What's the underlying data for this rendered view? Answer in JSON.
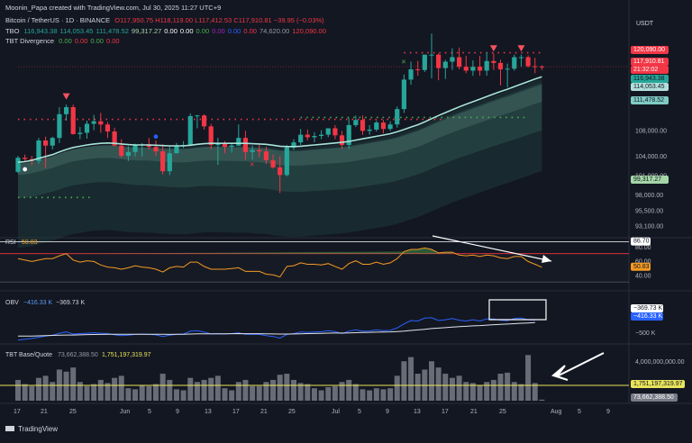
{
  "header": {
    "caption": "Moonin_Papa created with TradingView.com, Jul 30, 2025 11:27 UTC+9",
    "currency": "USDT",
    "symbol": "Bitcoin / TetherUS · 1D · BINANCE",
    "ohlc": "O117,950.75 H118,119.00 L117,412.53 C117,910.81 −39.95 (−0.03%)",
    "tbo_label": "TBO",
    "tbo_values": [
      "116,943.38",
      "114,053.45",
      "111,478.52",
      "99,317.27",
      "0.00",
      "0.00",
      "0.00",
      "0.00",
      "0.00",
      "0.00",
      "74,620.00",
      "120,090.00"
    ],
    "tbo_colors": [
      "#26a69a",
      "#26a69a",
      "#26a69a",
      "#a5d6a7",
      "#ffffff",
      "#ffffff",
      "#4caf50",
      "#9c27b0",
      "#2962ff",
      "#f23645",
      "#9598a1",
      "#f23645"
    ],
    "div_label": "TBT Divergence",
    "div_values": [
      "0.00",
      "0.00",
      "0.00",
      "0.00"
    ],
    "div_colors": [
      "#4caf50",
      "#f23645",
      "#4caf50",
      "#f23645"
    ]
  },
  "price_axis": {
    "ticks": [
      "108,000.00",
      "104,000.00",
      "101,000.00",
      "98,000.00",
      "95,500.00",
      "93,100.00"
    ],
    "tags": [
      {
        "text": "120,090.00",
        "bg": "#f23645",
        "fg": "#ffffff"
      },
      {
        "text": "117,910.81",
        "bg": "#f23645",
        "fg": "#ffffff"
      },
      {
        "text": "21:32:02",
        "bg": "#f23645",
        "fg": "#ffffff"
      },
      {
        "text": "116,943.38",
        "bg": "#26a69a",
        "fg": "#131722"
      },
      {
        "text": "114,053.45",
        "bg": "#b2dfdb",
        "fg": "#131722"
      },
      {
        "text": "111,478.52",
        "bg": "#80cbc4",
        "fg": "#131722"
      },
      {
        "text": "99,317.27",
        "bg": "#a5d6a7",
        "fg": "#131722"
      }
    ]
  },
  "rsi": {
    "label": "RSI",
    "value": "50.83",
    "ticks": [
      "80.00",
      "60.00",
      "40.00"
    ],
    "tag_top": "86.70",
    "tag_value": "50.83"
  },
  "obv": {
    "label": "OBV",
    "v1": "−416.33 K",
    "v2": "−369.73 K",
    "tag1": "−369.73 K",
    "tag2": "−416.33 K",
    "tick": "−500 K"
  },
  "volume": {
    "label": "TBT Base/Quote",
    "v1": "73,662,388.50",
    "v2": "1,751,197,319.97",
    "tick": "4,000,000,000.00",
    "tag1": "1,751,197,319.97",
    "tag2": "73,662,388.50"
  },
  "time_axis": [
    "17",
    "21",
    "25",
    "Jun",
    "5",
    "9",
    "13",
    "17",
    "21",
    "25",
    "Jul",
    "5",
    "9",
    "13",
    "17",
    "21",
    "25",
    "Aug",
    "5",
    "9"
  ],
  "footer": {
    "brand": "TradingView"
  },
  "chart_data": [
    {
      "type": "candlestick",
      "title": "Bitcoin / TetherUS · 1D · BINANCE",
      "x": [
        "May 15",
        "May 16",
        "May 17",
        "May 18",
        "May 19",
        "May 20",
        "May 21",
        "May 22",
        "May 23",
        "May 24",
        "May 25",
        "May 26",
        "May 27",
        "May 28",
        "May 29",
        "May 30",
        "May 31",
        "Jun 1",
        "Jun 2",
        "Jun 3",
        "Jun 4",
        "Jun 5",
        "Jun 6",
        "Jun 7",
        "Jun 8",
        "Jun 9",
        "Jun 10",
        "Jun 11",
        "Jun 12",
        "Jun 13",
        "Jun 14",
        "Jun 15",
        "Jun 16",
        "Jun 17",
        "Jun 18",
        "Jun 19",
        "Jun 20",
        "Jun 21",
        "Jun 22",
        "Jun 23",
        "Jun 24",
        "Jun 25",
        "Jun 26",
        "Jun 27",
        "Jun 28",
        "Jun 29",
        "Jun 30",
        "Jul 1",
        "Jul 2",
        "Jul 3",
        "Jul 4",
        "Jul 5",
        "Jul 6",
        "Jul 7",
        "Jul 8",
        "Jul 9",
        "Jul 10",
        "Jul 11",
        "Jul 12",
        "Jul 13",
        "Jul 14",
        "Jul 15",
        "Jul 16",
        "Jul 17",
        "Jul 18",
        "Jul 19",
        "Jul 20",
        "Jul 21",
        "Jul 22",
        "Jul 23",
        "Jul 24",
        "Jul 25",
        "Jul 26",
        "Jul 27",
        "Jul 28",
        "Jul 29",
        "Jul 30"
      ],
      "open": [
        101500,
        103700,
        103500,
        103200,
        106400,
        105600,
        106800,
        110500,
        111600,
        107400,
        107600,
        109000,
        109400,
        108900,
        107800,
        105600,
        104000,
        104600,
        105700,
        105800,
        105400,
        104700,
        101600,
        104400,
        105600,
        105700,
        110200,
        110300,
        108600,
        105700,
        105900,
        105400,
        105600,
        106800,
        104600,
        104900,
        104700,
        103300,
        102200,
        101000,
        105300,
        106100,
        107300,
        106900,
        107100,
        107300,
        108300,
        107200,
        105700,
        108800,
        109600,
        107900,
        108100,
        109200,
        108200,
        108900,
        111300,
        115900,
        117500,
        117400,
        119800,
        119800,
        117700,
        118700,
        119400,
        117900,
        117300,
        117900,
        117300,
        118800,
        118500,
        117500,
        117600,
        119400,
        119400,
        118000,
        117950
      ],
      "high": [
        104000,
        104200,
        104000,
        106800,
        107000,
        107000,
        111600,
        112000,
        112000,
        108500,
        109500,
        110400,
        110700,
        109300,
        108400,
        106600,
        105500,
        105900,
        106000,
        106800,
        106400,
        105800,
        105500,
        106000,
        106300,
        110600,
        110400,
        110500,
        109000,
        106800,
        106300,
        106000,
        108900,
        107900,
        105600,
        105700,
        105400,
        104200,
        103900,
        105700,
        106600,
        108200,
        108100,
        107700,
        108000,
        108300,
        108800,
        107900,
        109900,
        110300,
        110300,
        108800,
        109500,
        109600,
        109400,
        111700,
        116700,
        118700,
        118800,
        119600,
        123100,
        120000,
        119000,
        120800,
        120900,
        119600,
        118900,
        119600,
        120200,
        120000,
        119000,
        118400,
        119800,
        119800,
        119700,
        119300,
        118119
      ],
      "low": [
        101300,
        103100,
        102600,
        102800,
        102100,
        105000,
        106000,
        109500,
        107300,
        106600,
        106700,
        108000,
        107600,
        106800,
        105500,
        103700,
        103200,
        103900,
        103900,
        105000,
        104000,
        101100,
        101000,
        104400,
        105200,
        105500,
        108300,
        108100,
        105000,
        102600,
        104400,
        104500,
        105500,
        103400,
        103400,
        103800,
        102700,
        102000,
        98200,
        100800,
        104900,
        105700,
        106400,
        106100,
        106600,
        106900,
        106600,
        105100,
        105100,
        108500,
        107300,
        107300,
        107800,
        107500,
        107900,
        108400,
        110700,
        115100,
        116500,
        117100,
        116100,
        115800,
        116000,
        117400,
        117500,
        116900,
        116500,
        116500,
        116500,
        117400,
        115000,
        114700,
        117300,
        117900,
        117800,
        116900,
        117412
      ],
      "close": [
        103700,
        103500,
        103200,
        106400,
        105600,
        106800,
        110500,
        111600,
        107400,
        107600,
        109000,
        109400,
        108900,
        107800,
        105600,
        104000,
        104600,
        105700,
        105800,
        105400,
        104700,
        101600,
        104400,
        105600,
        105700,
        110200,
        110300,
        108600,
        105700,
        105900,
        105400,
        105600,
        106800,
        104600,
        104900,
        104700,
        103300,
        102200,
        101000,
        105300,
        106100,
        107300,
        106900,
        107100,
        107300,
        108300,
        107200,
        105700,
        108800,
        109600,
        107900,
        108100,
        109200,
        108200,
        108900,
        111300,
        115900,
        117500,
        117400,
        119800,
        119800,
        117700,
        118700,
        119400,
        117900,
        117300,
        117900,
        117300,
        118800,
        118500,
        117500,
        117600,
        119400,
        119400,
        118000,
        117950,
        117910.81
      ],
      "moving_average": [
        103000,
        103100,
        103300,
        103600,
        103900,
        104200,
        104600,
        105000,
        105300,
        105500,
        105700,
        105850,
        105950,
        106000,
        105950,
        105850,
        105750,
        105700,
        105700,
        105700,
        105650,
        105600,
        105550,
        105550,
        105550,
        105650,
        105800,
        105900,
        105950,
        105950,
        105950,
        105950,
        105950,
        105950,
        105900,
        105850,
        105800,
        105650,
        105500,
        105450,
        105450,
        105500,
        105600,
        105700,
        105800,
        105900,
        106000,
        106100,
        106250,
        106450,
        106650,
        106850,
        107050,
        107250,
        107450,
        107750,
        108100,
        108500,
        108850,
        109300,
        109800,
        110300,
        110750,
        111200,
        111650,
        112050,
        112450,
        112850,
        113250,
        113650,
        114050,
        114400,
        114800,
        115200,
        115600,
        116000,
        116350
      ],
      "markers": [
        {
          "kind": "sell",
          "date": "May 22",
          "price": 113200
        },
        {
          "kind": "sell",
          "date": "Jul 23",
          "price": 120700
        },
        {
          "kind": "sell",
          "date": "Jul 27",
          "price": 120700
        },
        {
          "kind": "cross-green",
          "date": "Jul 10",
          "price": 118700
        },
        {
          "kind": "cross-red",
          "date": "Jun 18",
          "price": 102700
        },
        {
          "kind": "dot-blue",
          "date": "Jun 4",
          "price": 107000
        },
        {
          "kind": "dot-white",
          "date": "May 16",
          "price": 101900
        }
      ],
      "levels": [
        {
          "name": "red dotted",
          "value": 109700,
          "from": "May 15",
          "to": "Jul 16"
        },
        {
          "name": "green dotted",
          "value": 110000,
          "from": "Jun 25",
          "to": "Jul 28"
        },
        {
          "name": "green dotted",
          "value": 97500,
          "from": "May 15",
          "to": "May 26"
        },
        {
          "name": "red dotted",
          "value": 120100,
          "from": "Jul 10",
          "to": "Jul 30"
        }
      ]
    },
    {
      "type": "line",
      "title": "RSI",
      "values": [
        63,
        61,
        59,
        61,
        63,
        63,
        67,
        70,
        61,
        58,
        60,
        59,
        54,
        51,
        50,
        48,
        50,
        53,
        51,
        50,
        48,
        44,
        50,
        52,
        51,
        58,
        58,
        52,
        48,
        48,
        48,
        49,
        50,
        45,
        45,
        45,
        41,
        40,
        37,
        52,
        53,
        57,
        55,
        55,
        54,
        56,
        52,
        48,
        56,
        60,
        55,
        55,
        58,
        55,
        57,
        63,
        73,
        76,
        76,
        78,
        76,
        71,
        72,
        72,
        68,
        67,
        68,
        66,
        68,
        67,
        64,
        63,
        66,
        66,
        59,
        55,
        50.83
      ],
      "ylim": [
        20,
        90
      ],
      "levels": [
        70,
        30,
        86.7
      ]
    },
    {
      "type": "line",
      "title": "OBV (K)",
      "series": [
        {
          "name": "OBV",
          "values": [
            -1400,
            -1380,
            -1360,
            -1330,
            -1300,
            -1280,
            -1230,
            -1200,
            -1250,
            -1240,
            -1230,
            -1220,
            -1230,
            -1240,
            -1270,
            -1290,
            -1280,
            -1260,
            -1250,
            -1260,
            -1270,
            -1310,
            -1280,
            -1260,
            -1250,
            -1180,
            -1170,
            -1200,
            -1250,
            -1240,
            -1250,
            -1240,
            -1220,
            -1260,
            -1255,
            -1260,
            -1290,
            -1310,
            -1350,
            -1260,
            -1240,
            -1200,
            -1210,
            -1200,
            -1195,
            -1170,
            -1190,
            -1240,
            -1180,
            -1150,
            -1180,
            -1175,
            -1150,
            -1170,
            -1160,
            -1100,
            -1000,
            -920,
            -930,
            -860,
            -850,
            -920,
            -900,
            -870,
            -910,
            -930,
            -900,
            -930,
            -880,
            -880,
            -910,
            -920,
            -870,
            -860,
            -900,
            -910,
            -416.33
          ]
        },
        {
          "name": "OBV MA",
          "values": [
            -1300,
            -1300,
            -1300,
            -1295,
            -1290,
            -1285,
            -1280,
            -1275,
            -1275,
            -1270,
            -1265,
            -1262,
            -1260,
            -1258,
            -1258,
            -1258,
            -1258,
            -1257,
            -1256,
            -1256,
            -1256,
            -1258,
            -1259,
            -1258,
            -1257,
            -1252,
            -1247,
            -1245,
            -1245,
            -1244,
            -1244,
            -1243,
            -1241,
            -1242,
            -1242,
            -1243,
            -1245,
            -1248,
            -1252,
            -1250,
            -1248,
            -1244,
            -1241,
            -1238,
            -1234,
            -1229,
            -1226,
            -1227,
            -1223,
            -1218,
            -1214,
            -1210,
            -1205,
            -1201,
            -1197,
            -1190,
            -1178,
            -1163,
            -1150,
            -1133,
            -1116,
            -1105,
            -1093,
            -1080,
            -1070,
            -1061,
            -1050,
            -1042,
            -1031,
            -1021,
            -1013,
            -1006,
            -996,
            -985,
            -978,
            -971,
            -369.73
          ]
        }
      ]
    },
    {
      "type": "bar",
      "title": "TBT Base/Quote",
      "values": [
        20000,
        16000,
        14000,
        22000,
        24000,
        18000,
        30000,
        28000,
        32000,
        18000,
        14000,
        16000,
        20000,
        17000,
        22000,
        24000,
        12000,
        11000,
        15000,
        14000,
        16000,
        26000,
        20000,
        11000,
        10000,
        22000,
        18000,
        20000,
        22000,
        24000,
        12000,
        10000,
        18000,
        20000,
        14000,
        14000,
        18000,
        20000,
        25000,
        26000,
        20000,
        17000,
        16000,
        12000,
        10000,
        13000,
        14000,
        18000,
        20000,
        16000,
        11000,
        10000,
        12000,
        11000,
        12000,
        24000,
        38000,
        42000,
        26000,
        30000,
        38000,
        32000,
        26000,
        22000,
        24000,
        18000,
        17000,
        15000,
        18000,
        20000,
        26000,
        27000,
        18000,
        16000,
        44000,
        17000,
        1000
      ],
      "levels": [
        1751197319.97,
        73662388.5
      ]
    }
  ]
}
